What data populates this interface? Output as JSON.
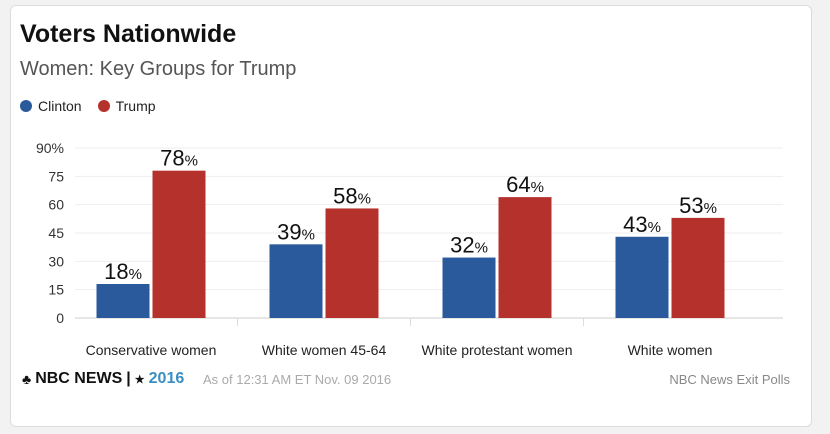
{
  "chart_data": {
    "type": "bar",
    "title": "Voters Nationwide",
    "subtitle": "Women: Key Groups for Trump",
    "categories": [
      "Conservative women",
      "White women 45-64",
      "White protestant women",
      "White women"
    ],
    "series": [
      {
        "name": "Clinton",
        "color": "#2a5a9b",
        "values": [
          18,
          39,
          32,
          43
        ]
      },
      {
        "name": "Trump",
        "color": "#b5312c",
        "values": [
          78,
          58,
          64,
          53
        ]
      }
    ],
    "yticks": [
      "0",
      "15",
      "30",
      "45",
      "60",
      "75",
      "90%"
    ],
    "ylim": [
      0,
      90
    ],
    "grid": true,
    "legend": "top-left",
    "value_suffix": "%"
  },
  "footer": {
    "brand": "NBC NEWS",
    "separator": "|",
    "star": "★",
    "year": "2016",
    "as_of": "As of 12:31 AM ET Nov. 09 2016",
    "source": "NBC News Exit Polls"
  }
}
